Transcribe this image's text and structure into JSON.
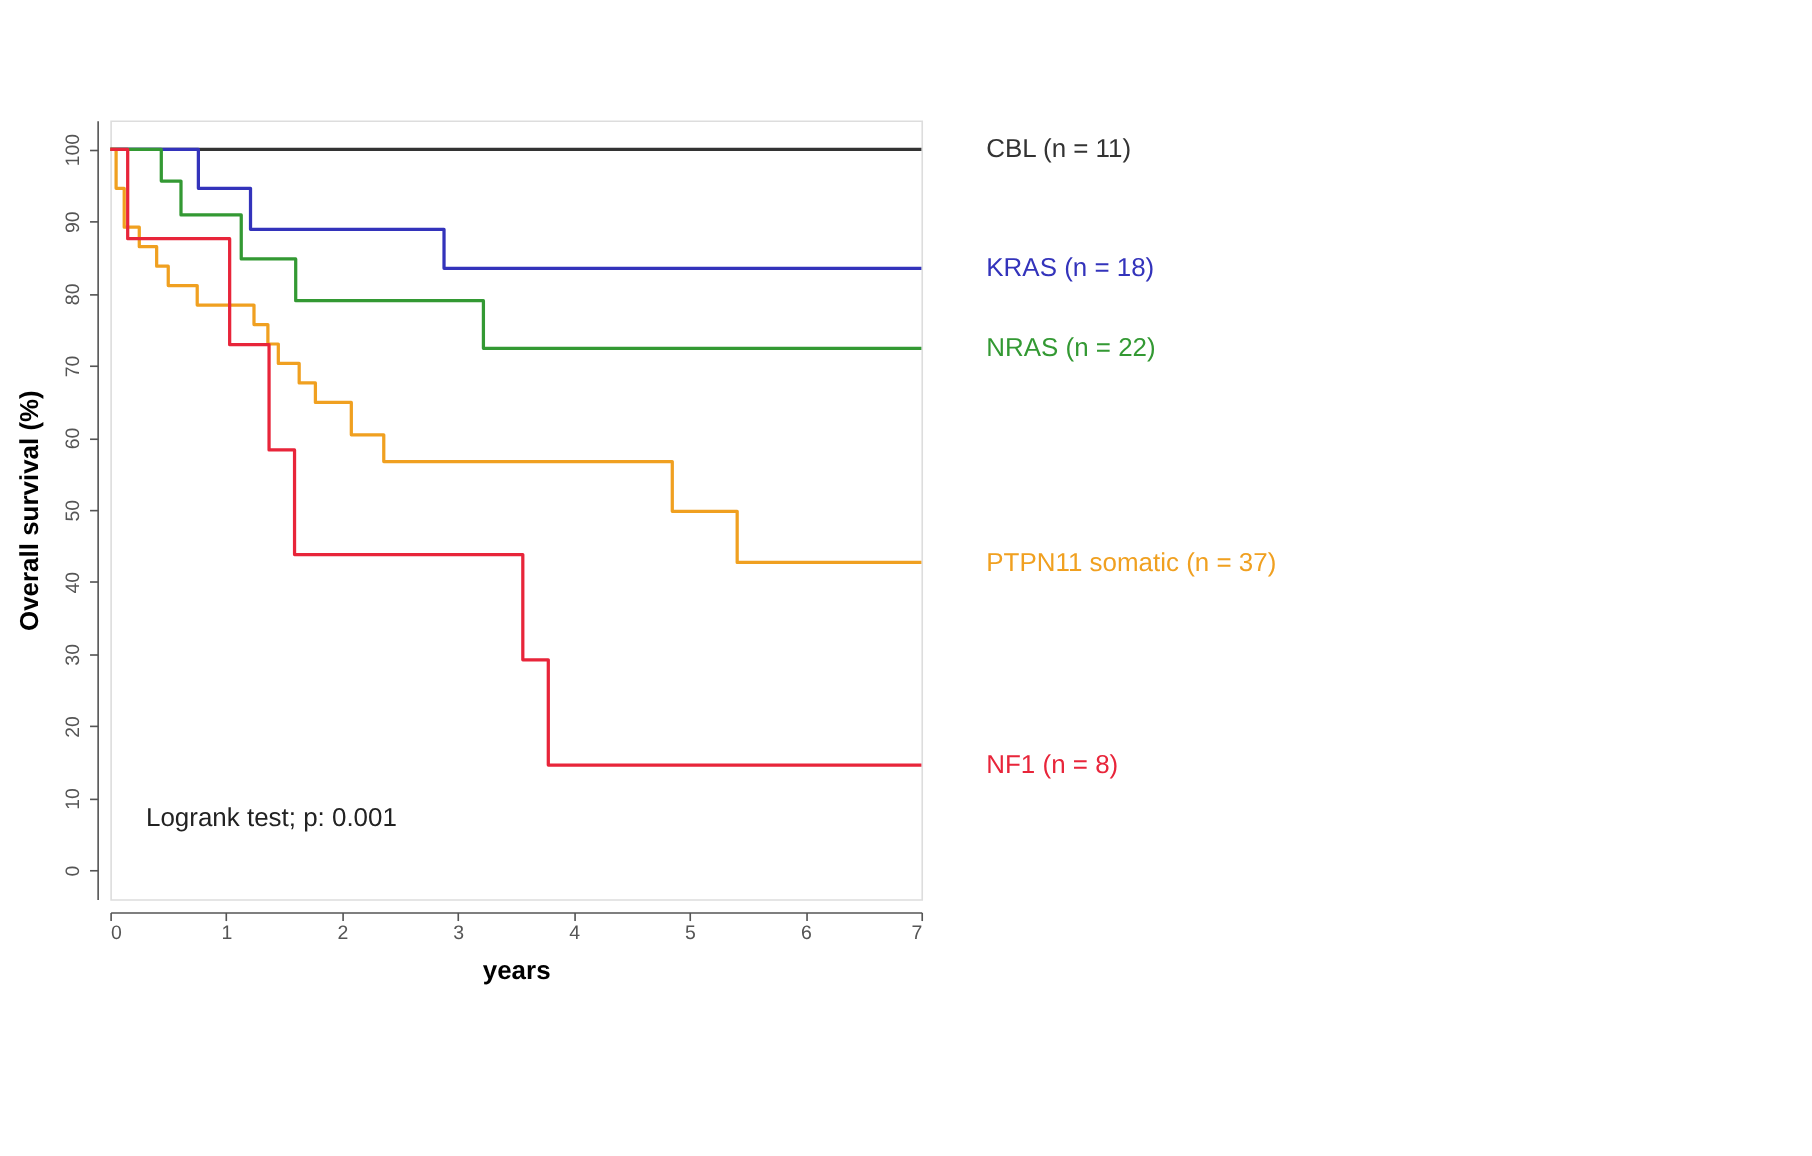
{
  "chart_data": {
    "type": "step",
    "xlabel": "years",
    "ylabel": "Overall survival (%)",
    "xlim": [
      0,
      7
    ],
    "xticks": [
      0,
      1,
      2,
      3,
      4,
      5,
      6,
      7
    ],
    "ylim": [
      -4,
      104
    ],
    "yticks": [
      0,
      10,
      20,
      30,
      40,
      50,
      60,
      70,
      80,
      90,
      100
    ],
    "grid": false,
    "annotations": [
      "Logrank test; p: 0.001"
    ],
    "series": [
      {
        "name": "CBL (n = 11)",
        "color": "#333333",
        "x": [
          0,
          7
        ],
        "values": [
          100,
          100
        ]
      },
      {
        "name": "KRAS (n = 18)",
        "color": "#3333bb",
        "x": [
          0,
          0.76,
          1.21,
          2.88,
          7
        ],
        "values": [
          100,
          94.6,
          88.9,
          83.5,
          83.5
        ]
      },
      {
        "name": "NRAS (n = 22)",
        "color": "#339933",
        "x": [
          0,
          0.44,
          0.61,
          1.13,
          1.6,
          3.22,
          7
        ],
        "values": [
          100,
          95.6,
          90.9,
          84.8,
          79.0,
          72.4,
          72.4
        ]
      },
      {
        "name": "PTPN11 somatic (n = 37)",
        "color": "#f0a020",
        "x": [
          0,
          0.05,
          0.12,
          0.25,
          0.4,
          0.5,
          0.75,
          1.24,
          1.36,
          1.45,
          1.63,
          1.77,
          2.08,
          2.36,
          4.85,
          5.41,
          7
        ],
        "values": [
          100,
          94.6,
          89.2,
          86.5,
          83.8,
          81.1,
          78.4,
          75.7,
          73.0,
          70.3,
          67.6,
          64.9,
          60.4,
          56.7,
          49.8,
          42.7,
          42.7
        ]
      },
      {
        "name": "NF1 (n = 8)",
        "color": "#e8253a",
        "x": [
          0,
          0.15,
          1.03,
          1.37,
          1.59,
          3.56,
          3.78,
          7
        ],
        "values": [
          100,
          87.6,
          72.9,
          58.3,
          43.8,
          29.2,
          14.6,
          14.6
        ]
      }
    ]
  }
}
